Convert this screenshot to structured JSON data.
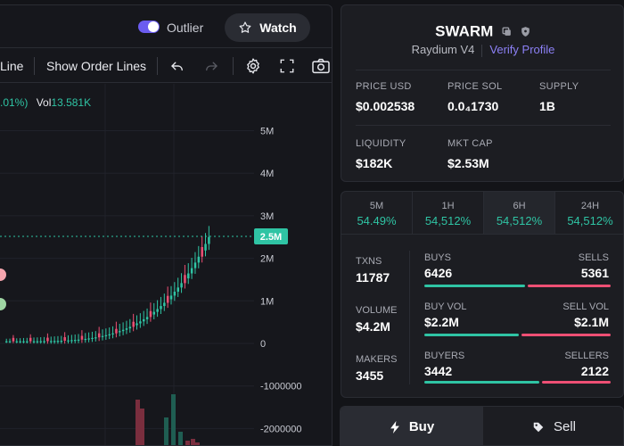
{
  "header": {
    "outlier_label": "Outlier",
    "outlier_on": true,
    "watch_label": "Watch"
  },
  "toolbar": {
    "line_label": "Line",
    "order_lines_label": "Show Order Lines"
  },
  "legend": {
    "change": ".01%)",
    "vol_label": "Vol",
    "vol_value": "13.581K"
  },
  "chart_data": {
    "type": "candlestick",
    "y_ticks": [
      "5M",
      "4M",
      "3M",
      "2M",
      "1M",
      "0",
      "-1000000",
      "-2000000"
    ],
    "price_tag": "2.5M",
    "current_price": 2.5
  },
  "token": {
    "name": "SWARM",
    "dex": "Raydium V4",
    "verify_label": "Verify Profile",
    "stats": [
      {
        "label": "PRICE USD",
        "value": "$0.002538"
      },
      {
        "label": "PRICE SOL",
        "value": "0.0₄1730"
      },
      {
        "label": "SUPPLY",
        "value": "1B"
      },
      {
        "label": "LIQUIDITY",
        "value": "$182K"
      },
      {
        "label": "MKT CAP",
        "value": "$2.53M"
      }
    ]
  },
  "timeframes": [
    {
      "name": "5M",
      "change": "54.49%"
    },
    {
      "name": "1H",
      "change": "54,512%"
    },
    {
      "name": "6H",
      "change": "54,512%"
    },
    {
      "name": "24H",
      "change": "54,512%"
    }
  ],
  "txstats": {
    "txns_label": "TXNS",
    "txns": "11787",
    "volume_label": "VOLUME",
    "volume": "$4.2M",
    "makers_label": "MAKERS",
    "makers": "3455",
    "buys_label": "BUYS",
    "buys": "6426",
    "sells_label": "SELLS",
    "sells": "5361",
    "buyvol_label": "BUY VOL",
    "buyvol": "$2.2M",
    "sellvol_label": "SELL VOL",
    "sellvol": "$2.1M",
    "buyers_label": "BUYERS",
    "buyers": "3442",
    "sellers_label": "SELLERS",
    "sellers": "2122"
  },
  "actions": {
    "buy_label": "Buy",
    "sell_label": "Sell"
  }
}
